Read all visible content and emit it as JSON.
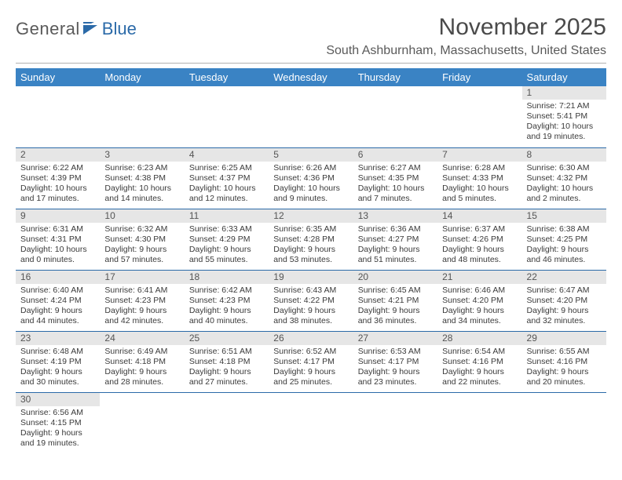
{
  "logo": {
    "general": "General",
    "blue": "Blue"
  },
  "header": {
    "title": "November 2025",
    "subtitle": "South Ashburnham, Massachusetts, United States"
  },
  "colors": {
    "header_bg": "#3a83c4",
    "header_text": "#ffffff",
    "row_divider": "#2b6aa8",
    "daynum_bg": "#e6e6e6",
    "body_text": "#3a3a3a",
    "logo_blue": "#2b6aa8"
  },
  "weekdays": [
    "Sunday",
    "Monday",
    "Tuesday",
    "Wednesday",
    "Thursday",
    "Friday",
    "Saturday"
  ],
  "weeks": [
    [
      null,
      null,
      null,
      null,
      null,
      null,
      {
        "n": "1",
        "sunrise": "7:21 AM",
        "sunset": "5:41 PM",
        "dl_h": "10",
        "dl_m": "19"
      }
    ],
    [
      {
        "n": "2",
        "sunrise": "6:22 AM",
        "sunset": "4:39 PM",
        "dl_h": "10",
        "dl_m": "17"
      },
      {
        "n": "3",
        "sunrise": "6:23 AM",
        "sunset": "4:38 PM",
        "dl_h": "10",
        "dl_m": "14"
      },
      {
        "n": "4",
        "sunrise": "6:25 AM",
        "sunset": "4:37 PM",
        "dl_h": "10",
        "dl_m": "12"
      },
      {
        "n": "5",
        "sunrise": "6:26 AM",
        "sunset": "4:36 PM",
        "dl_h": "10",
        "dl_m": "9"
      },
      {
        "n": "6",
        "sunrise": "6:27 AM",
        "sunset": "4:35 PM",
        "dl_h": "10",
        "dl_m": "7"
      },
      {
        "n": "7",
        "sunrise": "6:28 AM",
        "sunset": "4:33 PM",
        "dl_h": "10",
        "dl_m": "5"
      },
      {
        "n": "8",
        "sunrise": "6:30 AM",
        "sunset": "4:32 PM",
        "dl_h": "10",
        "dl_m": "2"
      }
    ],
    [
      {
        "n": "9",
        "sunrise": "6:31 AM",
        "sunset": "4:31 PM",
        "dl_h": "10",
        "dl_m": "0"
      },
      {
        "n": "10",
        "sunrise": "6:32 AM",
        "sunset": "4:30 PM",
        "dl_h": "9",
        "dl_m": "57"
      },
      {
        "n": "11",
        "sunrise": "6:33 AM",
        "sunset": "4:29 PM",
        "dl_h": "9",
        "dl_m": "55"
      },
      {
        "n": "12",
        "sunrise": "6:35 AM",
        "sunset": "4:28 PM",
        "dl_h": "9",
        "dl_m": "53"
      },
      {
        "n": "13",
        "sunrise": "6:36 AM",
        "sunset": "4:27 PM",
        "dl_h": "9",
        "dl_m": "51"
      },
      {
        "n": "14",
        "sunrise": "6:37 AM",
        "sunset": "4:26 PM",
        "dl_h": "9",
        "dl_m": "48"
      },
      {
        "n": "15",
        "sunrise": "6:38 AM",
        "sunset": "4:25 PM",
        "dl_h": "9",
        "dl_m": "46"
      }
    ],
    [
      {
        "n": "16",
        "sunrise": "6:40 AM",
        "sunset": "4:24 PM",
        "dl_h": "9",
        "dl_m": "44"
      },
      {
        "n": "17",
        "sunrise": "6:41 AM",
        "sunset": "4:23 PM",
        "dl_h": "9",
        "dl_m": "42"
      },
      {
        "n": "18",
        "sunrise": "6:42 AM",
        "sunset": "4:23 PM",
        "dl_h": "9",
        "dl_m": "40"
      },
      {
        "n": "19",
        "sunrise": "6:43 AM",
        "sunset": "4:22 PM",
        "dl_h": "9",
        "dl_m": "38"
      },
      {
        "n": "20",
        "sunrise": "6:45 AM",
        "sunset": "4:21 PM",
        "dl_h": "9",
        "dl_m": "36"
      },
      {
        "n": "21",
        "sunrise": "6:46 AM",
        "sunset": "4:20 PM",
        "dl_h": "9",
        "dl_m": "34"
      },
      {
        "n": "22",
        "sunrise": "6:47 AM",
        "sunset": "4:20 PM",
        "dl_h": "9",
        "dl_m": "32"
      }
    ],
    [
      {
        "n": "23",
        "sunrise": "6:48 AM",
        "sunset": "4:19 PM",
        "dl_h": "9",
        "dl_m": "30"
      },
      {
        "n": "24",
        "sunrise": "6:49 AM",
        "sunset": "4:18 PM",
        "dl_h": "9",
        "dl_m": "28"
      },
      {
        "n": "25",
        "sunrise": "6:51 AM",
        "sunset": "4:18 PM",
        "dl_h": "9",
        "dl_m": "27"
      },
      {
        "n": "26",
        "sunrise": "6:52 AM",
        "sunset": "4:17 PM",
        "dl_h": "9",
        "dl_m": "25"
      },
      {
        "n": "27",
        "sunrise": "6:53 AM",
        "sunset": "4:17 PM",
        "dl_h": "9",
        "dl_m": "23"
      },
      {
        "n": "28",
        "sunrise": "6:54 AM",
        "sunset": "4:16 PM",
        "dl_h": "9",
        "dl_m": "22"
      },
      {
        "n": "29",
        "sunrise": "6:55 AM",
        "sunset": "4:16 PM",
        "dl_h": "9",
        "dl_m": "20"
      }
    ],
    [
      {
        "n": "30",
        "sunrise": "6:56 AM",
        "sunset": "4:15 PM",
        "dl_h": "9",
        "dl_m": "19"
      },
      null,
      null,
      null,
      null,
      null,
      null
    ]
  ]
}
